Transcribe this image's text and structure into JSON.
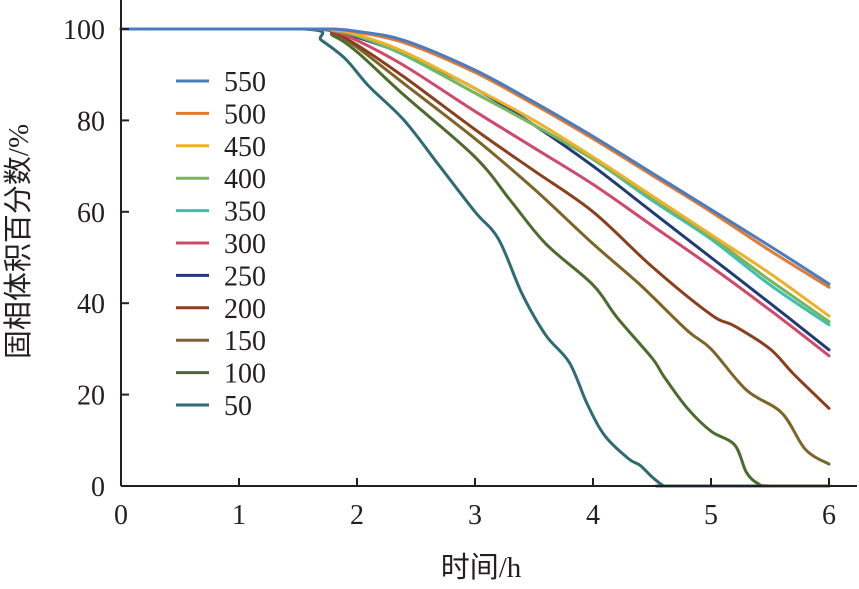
{
  "chart_data": {
    "type": "line",
    "title": "",
    "xlabel": "时间/h",
    "ylabel": "固相体积百分数/%",
    "xlim": [
      0,
      6
    ],
    "ylim": [
      0,
      100
    ],
    "xticks": [
      "0",
      "1",
      "2",
      "3",
      "4",
      "5",
      "6"
    ],
    "yticks": [
      "0",
      "20",
      "40",
      "60",
      "80",
      "100"
    ],
    "grid": false,
    "legend": "upper-left",
    "series": [
      {
        "name": "550",
        "color": "#4a7cc0",
        "points": [
          [
            0,
            100
          ],
          [
            1.6,
            100
          ],
          [
            1.8,
            100
          ],
          [
            2,
            99.5
          ],
          [
            2.4,
            97.5
          ],
          [
            3,
            91
          ],
          [
            3.5,
            84
          ],
          [
            4,
            76.5
          ],
          [
            4.5,
            68.5
          ],
          [
            5,
            60.5
          ],
          [
            5.5,
            52.5
          ],
          [
            6,
            44.2
          ]
        ]
      },
      {
        "name": "500",
        "color": "#e07a35",
        "points": [
          [
            0,
            100
          ],
          [
            1.6,
            100
          ],
          [
            1.8,
            100
          ],
          [
            2,
            99.3
          ],
          [
            2.4,
            97
          ],
          [
            3,
            90.5
          ],
          [
            3.5,
            83.5
          ],
          [
            4,
            76
          ],
          [
            4.5,
            68
          ],
          [
            5,
            60
          ],
          [
            5.5,
            51.5
          ],
          [
            6,
            43.5
          ]
        ]
      },
      {
        "name": "450",
        "color": "#f0b02a",
        "points": [
          [
            0,
            100
          ],
          [
            1.6,
            100
          ],
          [
            1.8,
            99.8
          ],
          [
            2,
            98.8
          ],
          [
            2.4,
            95
          ],
          [
            3,
            87
          ],
          [
            3.5,
            80
          ],
          [
            4,
            72
          ],
          [
            4.5,
            63.5
          ],
          [
            5,
            55
          ],
          [
            5.5,
            46.5
          ],
          [
            6,
            37.2
          ]
        ]
      },
      {
        "name": "400",
        "color": "#7ab55c",
        "points": [
          [
            0,
            100
          ],
          [
            1.6,
            100
          ],
          [
            1.8,
            99.7
          ],
          [
            2,
            98.5
          ],
          [
            2.4,
            94.5
          ],
          [
            3,
            86
          ],
          [
            3.5,
            79
          ],
          [
            4,
            71.5
          ],
          [
            4.5,
            63
          ],
          [
            5,
            54.5
          ],
          [
            5.5,
            45
          ],
          [
            6,
            36
          ]
        ]
      },
      {
        "name": "350",
        "color": "#3fbfb0",
        "points": [
          [
            0,
            100
          ],
          [
            1.6,
            100
          ],
          [
            1.8,
            99.7
          ],
          [
            2,
            98.5
          ],
          [
            2.4,
            94.3
          ],
          [
            3,
            86
          ],
          [
            3.5,
            79
          ],
          [
            4,
            71.5
          ],
          [
            4.5,
            62.5
          ],
          [
            5,
            54
          ],
          [
            5.5,
            44
          ],
          [
            6,
            35.3
          ]
        ]
      },
      {
        "name": "300",
        "color": "#cf4a6a",
        "points": [
          [
            0,
            100
          ],
          [
            1.6,
            100
          ],
          [
            1.8,
            99.5
          ],
          [
            2,
            97.5
          ],
          [
            2.4,
            92
          ],
          [
            3,
            82
          ],
          [
            3.5,
            74
          ],
          [
            4,
            66
          ],
          [
            4.5,
            57
          ],
          [
            5,
            48
          ],
          [
            5.5,
            38.5
          ],
          [
            6,
            28.5
          ]
        ]
      },
      {
        "name": "250",
        "color": "#1f3b78",
        "points": [
          [
            0,
            100
          ],
          [
            1.6,
            100
          ],
          [
            1.8,
            99.6
          ],
          [
            2,
            98.2
          ],
          [
            2.4,
            94.5
          ],
          [
            3,
            87
          ],
          [
            3.5,
            79
          ],
          [
            4,
            70
          ],
          [
            4.5,
            60
          ],
          [
            5,
            50
          ],
          [
            5.5,
            40
          ],
          [
            6,
            29.8
          ]
        ]
      },
      {
        "name": "200",
        "color": "#8b3f1c",
        "points": [
          [
            0,
            100
          ],
          [
            1.6,
            100
          ],
          [
            1.8,
            99.2
          ],
          [
            2,
            96.5
          ],
          [
            2.4,
            89.5
          ],
          [
            3,
            78
          ],
          [
            3.5,
            69
          ],
          [
            4,
            60
          ],
          [
            4.5,
            48
          ],
          [
            5,
            37.5
          ],
          [
            5.2,
            35
          ],
          [
            5.5,
            30
          ],
          [
            5.7,
            24.5
          ],
          [
            6,
            17
          ]
        ]
      },
      {
        "name": "150",
        "color": "#7d6528",
        "points": [
          [
            0,
            100
          ],
          [
            1.6,
            100
          ],
          [
            1.8,
            99
          ],
          [
            2,
            96
          ],
          [
            2.4,
            88
          ],
          [
            3,
            76
          ],
          [
            3.5,
            65
          ],
          [
            4,
            53
          ],
          [
            4.4,
            44
          ],
          [
            4.8,
            34
          ],
          [
            5,
            30
          ],
          [
            5.3,
            21
          ],
          [
            5.6,
            16
          ],
          [
            5.8,
            8
          ],
          [
            6,
            4.8
          ]
        ]
      },
      {
        "name": "100",
        "color": "#4d6b2c",
        "points": [
          [
            0,
            100
          ],
          [
            1.6,
            100
          ],
          [
            1.8,
            98.5
          ],
          [
            2,
            95
          ],
          [
            2.4,
            85.5
          ],
          [
            3,
            72
          ],
          [
            3.3,
            62.5
          ],
          [
            3.6,
            53
          ],
          [
            4,
            44
          ],
          [
            4.2,
            37
          ],
          [
            4.5,
            28
          ],
          [
            4.6,
            24
          ],
          [
            4.8,
            17
          ],
          [
            5,
            12
          ],
          [
            5.2,
            9
          ],
          [
            5.3,
            3
          ],
          [
            5.4,
            0.5
          ],
          [
            5.5,
            0
          ],
          [
            6,
            0
          ]
        ]
      },
      {
        "name": "50",
        "color": "#2e6b73",
        "points": [
          [
            0,
            100
          ],
          [
            1.55,
            100
          ],
          [
            1.7,
            97.5
          ],
          [
            1.9,
            93.5
          ],
          [
            2.1,
            87.5
          ],
          [
            2.4,
            80
          ],
          [
            2.7,
            70
          ],
          [
            3,
            60
          ],
          [
            3.2,
            54
          ],
          [
            3.4,
            42
          ],
          [
            3.6,
            33
          ],
          [
            3.8,
            27
          ],
          [
            3.95,
            18
          ],
          [
            4.1,
            11
          ],
          [
            4.3,
            6
          ],
          [
            4.4,
            4.5
          ],
          [
            4.5,
            2
          ],
          [
            4.6,
            0
          ],
          [
            4.65,
            0
          ],
          [
            6,
            0
          ]
        ]
      }
    ]
  }
}
